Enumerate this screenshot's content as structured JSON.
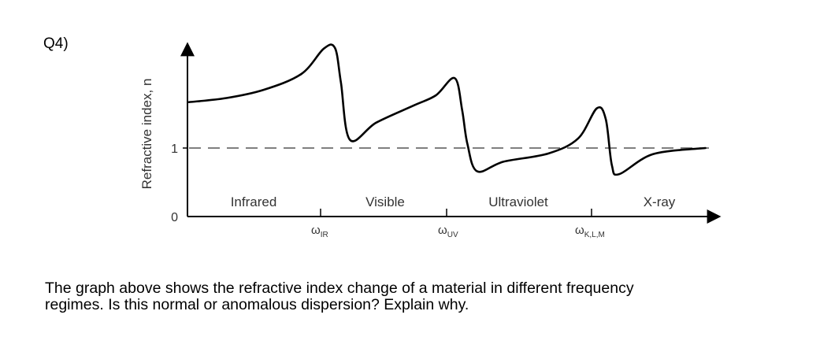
{
  "question_label": "Q4)",
  "caption": {
    "line1": "The graph above shows the refractive index change of a material in different frequency",
    "line2": "regimes. Is this normal or anomalous dispersion? Explain why."
  },
  "chart_data": {
    "type": "line",
    "title": "",
    "xlabel": "",
    "ylabel": "Refractive index, n",
    "y_ticks": [
      "0",
      "1"
    ],
    "reference_line": {
      "y": 1,
      "style": "dashed"
    },
    "x_ticks": [
      {
        "label": "ω",
        "subscript": "IR"
      },
      {
        "label": "ω",
        "subscript": "UV"
      },
      {
        "label": "ω",
        "subscript": "K,L,M"
      }
    ],
    "regions": [
      "Infrared",
      "Visible",
      "Ultraviolet",
      "X-ray"
    ],
    "grid": false,
    "legend": "none",
    "series": [
      {
        "values_description_free": true,
        "x": [
          0.0,
          0.5,
          1.0,
          1.5,
          1.8,
          1.95,
          2.03,
          2.15,
          2.5,
          3.0,
          3.3,
          3.55,
          3.65,
          3.72,
          3.85,
          4.2,
          4.8,
          5.2,
          5.45,
          5.57,
          5.65,
          5.75,
          6.2,
          6.9
        ],
        "y": [
          1.67,
          1.73,
          1.85,
          2.08,
          2.45,
          2.46,
          1.95,
          1.12,
          1.37,
          1.62,
          1.77,
          2.02,
          1.55,
          1.06,
          0.66,
          0.8,
          0.92,
          1.14,
          1.58,
          1.42,
          0.75,
          0.62,
          0.91,
          1.0
        ]
      }
    ]
  }
}
